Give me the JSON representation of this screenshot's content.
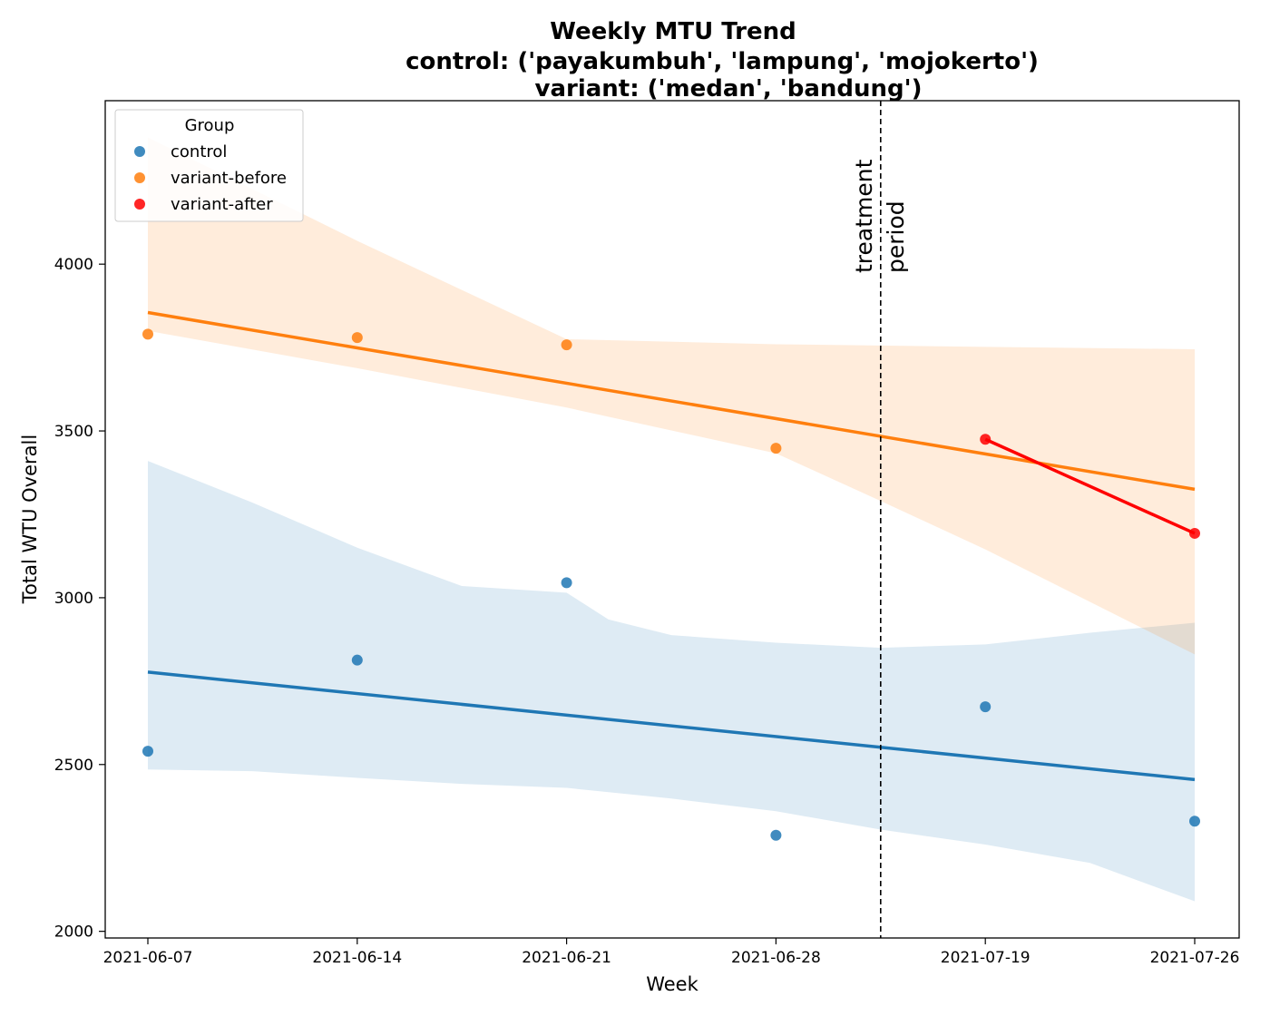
{
  "chart_data": {
    "type": "scatter",
    "title_lines": [
      "Weekly MTU Trend",
      "control: ('payakumbuh', 'lampung', 'mojokerto')",
      "variant: ('medan', 'bandung')"
    ],
    "xlabel": "Week",
    "ylabel": "Total WTU Overall",
    "x_categories": [
      "2021-06-07",
      "2021-06-14",
      "2021-06-21",
      "2021-06-28",
      "2021-07-19",
      "2021-07-26"
    ],
    "ylim": [
      1980,
      4490
    ],
    "yticks": [
      2000,
      2500,
      3000,
      3500,
      4000
    ],
    "grid": false,
    "legend": {
      "title": "Group",
      "position": "top-left",
      "entries": [
        "control",
        "variant-before",
        "variant-after"
      ]
    },
    "annotation": {
      "lines": [
        "treatment",
        "period"
      ],
      "x_position": 3.5
    },
    "colors": {
      "control": "#1f77b4",
      "variant_before": "#ff7f0e",
      "variant_after": "#ff0000",
      "control_band": "#1f77b4",
      "variant_band": "#ff7f0e"
    },
    "series": [
      {
        "name": "control",
        "x": [
          0,
          1,
          2,
          3,
          4,
          5
        ],
        "y": [
          2540,
          2813,
          3045,
          2288,
          2673,
          2330
        ],
        "fit": [
          2777,
          2455
        ],
        "band_upper": [
          [
            0,
            3410
          ],
          [
            0.5,
            3285
          ],
          [
            1,
            3150
          ],
          [
            1.5,
            3035
          ],
          [
            2,
            3015
          ],
          [
            2.2,
            2935
          ],
          [
            2.5,
            2888
          ],
          [
            3,
            2865
          ],
          [
            3.5,
            2850
          ],
          [
            4,
            2860
          ],
          [
            4.5,
            2895
          ],
          [
            5,
            2925
          ]
        ],
        "band_lower": [
          [
            0,
            2485
          ],
          [
            0.5,
            2480
          ],
          [
            1,
            2460
          ],
          [
            1.5,
            2442
          ],
          [
            2,
            2430
          ],
          [
            2.5,
            2398
          ],
          [
            3,
            2360
          ],
          [
            3.5,
            2305
          ],
          [
            4,
            2260
          ],
          [
            4.5,
            2205
          ],
          [
            5,
            2090
          ]
        ]
      },
      {
        "name": "variant-before",
        "x": [
          0,
          1,
          2,
          3
        ],
        "y": [
          3790,
          3780,
          3758,
          3448
        ],
        "fit": [
          3855,
          3325
        ],
        "band_upper": [
          [
            0,
            4380
          ],
          [
            1,
            4070
          ],
          [
            2,
            3775
          ],
          [
            3,
            3760
          ],
          [
            4,
            3752
          ],
          [
            5,
            3745
          ]
        ],
        "band_lower": [
          [
            0,
            3800
          ],
          [
            1,
            3688
          ],
          [
            2,
            3570
          ],
          [
            3,
            3433
          ],
          [
            3.5,
            3290
          ],
          [
            4,
            3145
          ],
          [
            5,
            2830
          ]
        ]
      },
      {
        "name": "variant-after",
        "x": [
          4,
          5
        ],
        "y": [
          3475,
          3193
        ]
      }
    ]
  }
}
